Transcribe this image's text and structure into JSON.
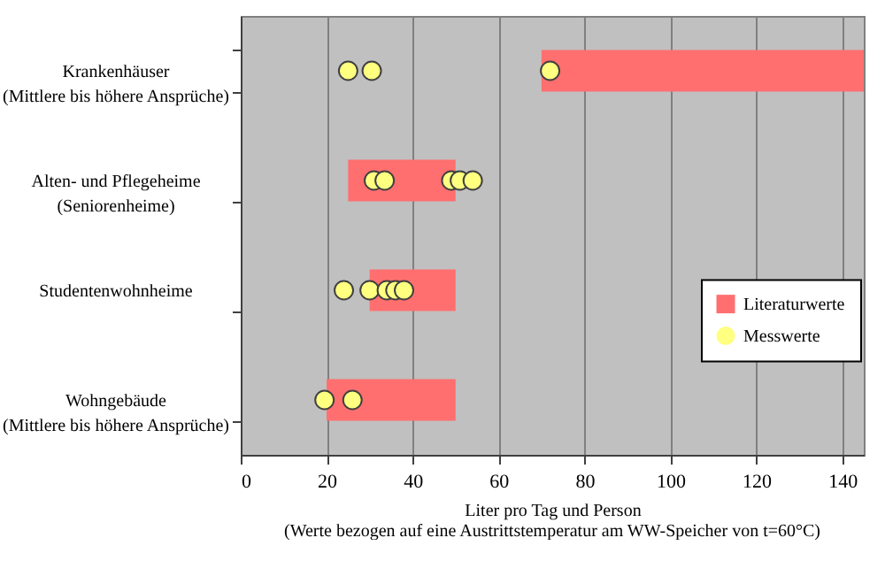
{
  "chart_data": {
    "type": "bar",
    "orientation": "horizontal",
    "categories": [
      "Krankenhäuser\n(Mittlere bis höhere Ansprüche)",
      "Alten- und Pflegeheime\n(Seniorenheime)",
      "Studentenwohnheime",
      "Wohngebäude\n(Mittlere bis höhere Ansprüche)"
    ],
    "xlabel": "Liter pro Tag und Person",
    "annotations": [
      "(Werte bezogen auf eine Austrittstemperatur am WW-Speicher von t=60°C)"
    ],
    "xlim": [
      0,
      145
    ],
    "xticks": [
      0,
      20,
      40,
      60,
      80,
      100,
      120,
      140
    ],
    "grid": "x",
    "legend": "right",
    "series": [
      {
        "name": "Literaturwerte",
        "color": "#ff6f6f",
        "base": [
          70,
          25,
          30,
          20
        ],
        "values": [
          75,
          25,
          20,
          30
        ]
      },
      {
        "name": "Messwerte",
        "type": "scatter",
        "color": "#ffff80",
        "marker": "circle",
        "x": [
          "Krankenhäuser\n(Mittlere bis höhere Ansprüche)",
          "Krankenhäuser\n(Mittlere bis höhere Ansprüche)",
          "Krankenhäuser\n(Mittlere bis höhere Ansprüche)",
          "Alten- und Pflegeheime\n(Seniorenheime)",
          "Alten- und Pflegeheime\n(Seniorenheime)",
          "Alten- und Pflegeheime\n(Seniorenheime)",
          "Alten- und Pflegeheime\n(Seniorenheime)",
          "Alten- und Pflegeheime\n(Seniorenheime)",
          "Studentenwohnheime",
          "Studentenwohnheime",
          "Studentenwohnheime",
          "Studentenwohnheime",
          "Studentenwohnheime",
          "Wohngebäude\n(Mittlere bis höhere Ansprüche)",
          "Wohngebäude\n(Mittlere bis höhere Ansprüche)"
        ],
        "values": [
          25,
          30.5,
          72,
          31,
          33.5,
          49,
          51,
          54,
          24,
          30,
          34,
          36,
          38,
          19.5,
          26
        ]
      }
    ]
  }
}
